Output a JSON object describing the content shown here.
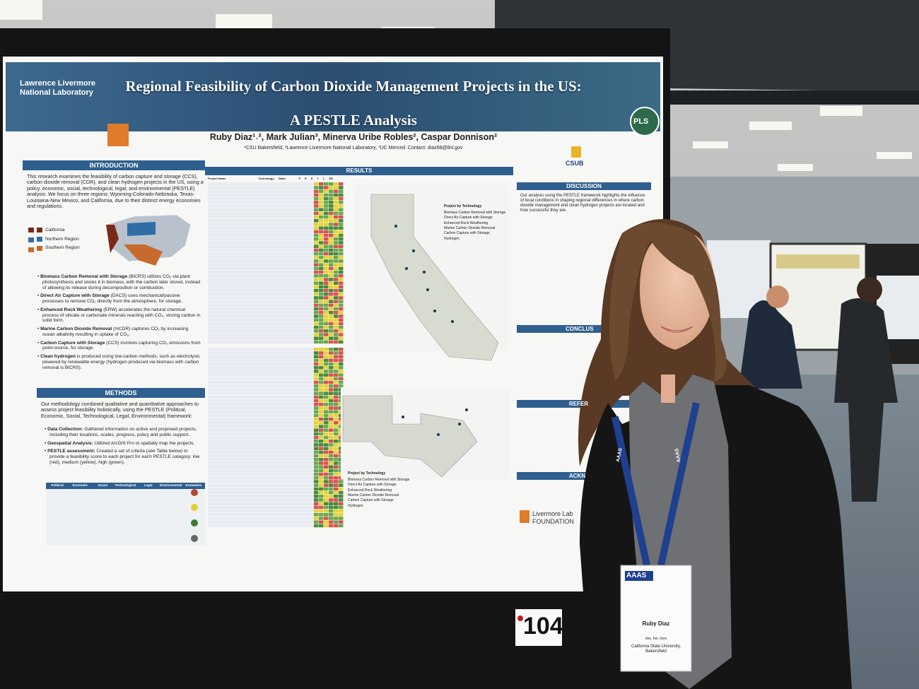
{
  "poster": {
    "organization": "Lawrence Livermore National Laboratory",
    "title_line1": "Regional Feasibility of Carbon Dioxide Management Projects in the US:",
    "title_line2": "A PESTLE Analysis",
    "authors": "Ruby Diaz¹˒², Mark Julian³, Minerva Uribe Robles², Caspar Donnison²",
    "affiliations": "¹CSU Bakersfield, ²Lawrence Livermore National Laboratory, ³UC Merced. Contact: diaz68@llnl.gov",
    "logo_right": "PLS",
    "logo_csub": "CSUB",
    "introduction": {
      "heading": "INTRODUCTION",
      "text": "This research examines the feasibility of carbon capture and storage (CCS), carbon dioxide removal (CDR), and clean hydrogen projects in the US, using a policy, economic, social, technological, legal, and environmental (PESTLE) analysis. We focus on three regions: Wyoming-Colorado-Nebraska, Texas-Louisiana-New Mexico, and California, due to their distinct energy economies and regulations.",
      "legend": [
        "California",
        "Northern Region",
        "Southern Region"
      ],
      "bullets": [
        {
          "term": "Biomass Carbon Removal with Storage",
          "text": "(BiCRS) utilizes CO₂ via plant photosynthesis and stores it in biomass, with the carbon later stored, instead of allowing its release during decomposition or combustion."
        },
        {
          "term": "Direct Air Capture with Storage",
          "text": "(DACS) uses mechanical/passive processes to remove CO₂ directly from the atmosphere, for storage."
        },
        {
          "term": "Enhanced Rock Weathering",
          "text": "(ERW) accelerates the natural chemical process of silicate or carbonate minerals reacting with CO₂, storing carbon in solid form."
        },
        {
          "term": "Marine Carbon Dioxide Removal",
          "text": "(mCDR) captures CO₂ by increasing ocean alkalinity resulting in uptake of CO₂."
        },
        {
          "term": "Carbon Capture with Storage",
          "text": "(CCS) involves capturing CO₂ emissions from point-source, for storage."
        },
        {
          "term": "Clean hydrogen",
          "text": "is produced using low-carbon methods, such as electrolysis powered by renewable energy (hydrogen produced via biomass with carbon removal is BiCRS)."
        }
      ]
    },
    "methods": {
      "heading": "METHODS",
      "text": "Our methodology combined qualitative and quantitative approaches to assess project feasibility holistically, using the PESTLE (Political, Economic, Social, Technological, Legal, Environmental) framework:",
      "bullets": [
        {
          "term": "Data Collection:",
          "text": "Gathered information on active and proposed projects, including their locations, scales, progress, policy and public support."
        },
        {
          "term": "Geospatial Analysis:",
          "text": "Utilized ArcGIS Pro to spatially map the projects."
        },
        {
          "term": "PESTLE assessment:",
          "text": "Created a set of criteria (see Table below) to provide a feasibility score to each project for each PESTLE category: low (red), medium (yellow), high (green)."
        }
      ],
      "table_headers": [
        "Political",
        "Economic",
        "Social",
        "Technological",
        "Legal",
        "Environmental",
        "Evaluation"
      ]
    },
    "results": {
      "heading": "RESULTS",
      "table_headers": [
        "Project Name",
        "Technology",
        "State",
        "P",
        "E",
        "S",
        "T",
        "L",
        "EN"
      ],
      "map_legend_title": "Project by Technology",
      "map_legend": [
        "Biomass Carbon Removal with Storage",
        "Direct Air Capture with Storage",
        "Enhanced Rock Weathering",
        "Marine Carbon Dioxide Removal",
        "Carbon Capture with Storage",
        "Hydrogen"
      ]
    },
    "discussion": {
      "heading": "DISCUSSION",
      "text": "Our analysis using the PESTLE framework highlights the influence of local conditions in shaping regional differences in where carbon dioxide management and clean hydrogen projects are located and how successful they are."
    },
    "conclusion_heading": "CONCLUS",
    "references_heading": "REFER",
    "acknowledgements_heading": "ACKN",
    "foundation": "Livermore Lab FOUNDATION"
  },
  "poster_number": "104",
  "badge": {
    "org": "AAAS",
    "name": "Ruby Diaz",
    "pronouns": "she, her, hers",
    "affiliation": "California State University, Bakersfield"
  },
  "lanyard": "AAAS"
}
